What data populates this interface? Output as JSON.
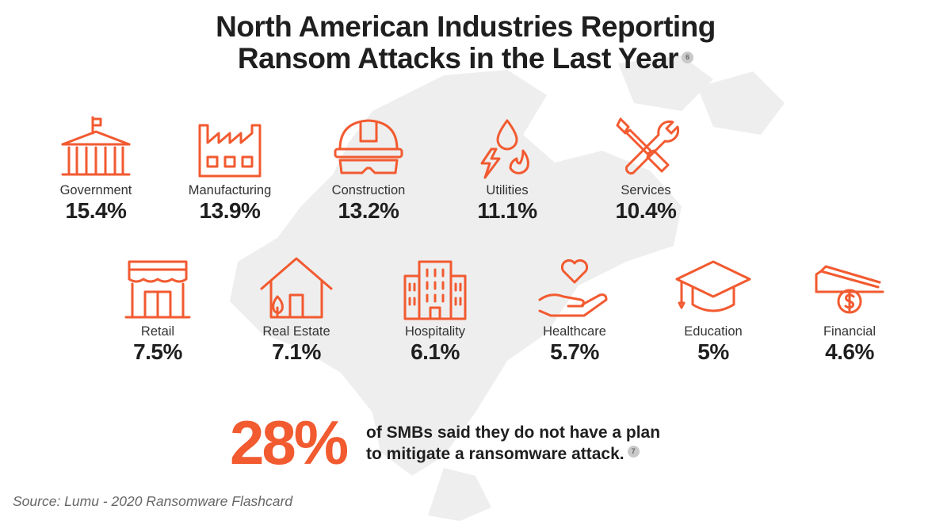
{
  "title_line1": "North American Industries Reporting",
  "title_line2": "Ransom Attacks in the Last Year",
  "title_ref": "6",
  "chart_data": {
    "type": "table",
    "categories": [
      "Government",
      "Manufacturing",
      "Construction",
      "Utilities",
      "Services",
      "Retail",
      "Real Estate",
      "Hospitality",
      "Healthcare",
      "Education",
      "Financial"
    ],
    "values": [
      15.4,
      13.9,
      13.2,
      11.1,
      10.4,
      7.5,
      7.1,
      6.1,
      5.7,
      5,
      4.6
    ],
    "items": [
      {
        "name": "Government",
        "value": "15.4%",
        "icon": "government-building-icon"
      },
      {
        "name": "Manufacturing",
        "value": "13.9%",
        "icon": "factory-icon"
      },
      {
        "name": "Construction",
        "value": "13.2%",
        "icon": "hard-hat-icon"
      },
      {
        "name": "Utilities",
        "value": "11.1%",
        "icon": "utilities-icon"
      },
      {
        "name": "Services",
        "value": "10.4%",
        "icon": "tools-icon"
      },
      {
        "name": "Retail",
        "value": "7.5%",
        "icon": "storefront-icon"
      },
      {
        "name": "Real Estate",
        "value": "7.1%",
        "icon": "house-icon"
      },
      {
        "name": "Hospitality",
        "value": "6.1%",
        "icon": "hotel-icon"
      },
      {
        "name": "Healthcare",
        "value": "5.7%",
        "icon": "heart-hand-icon"
      },
      {
        "name": "Education",
        "value": "5%",
        "icon": "graduation-cap-icon"
      },
      {
        "name": "Financial",
        "value": "4.6%",
        "icon": "money-icon"
      }
    ]
  },
  "callout": {
    "percent": "28%",
    "line1": "of SMBs said they do not have a plan",
    "line2": "to mitigate a ransomware attack.",
    "ref": "7"
  },
  "source": "Source: Lumu - 2020 Ransomware Flashcard",
  "colors": {
    "accent": "#f25a30",
    "text": "#1f1f1f",
    "map": "#ececec"
  }
}
